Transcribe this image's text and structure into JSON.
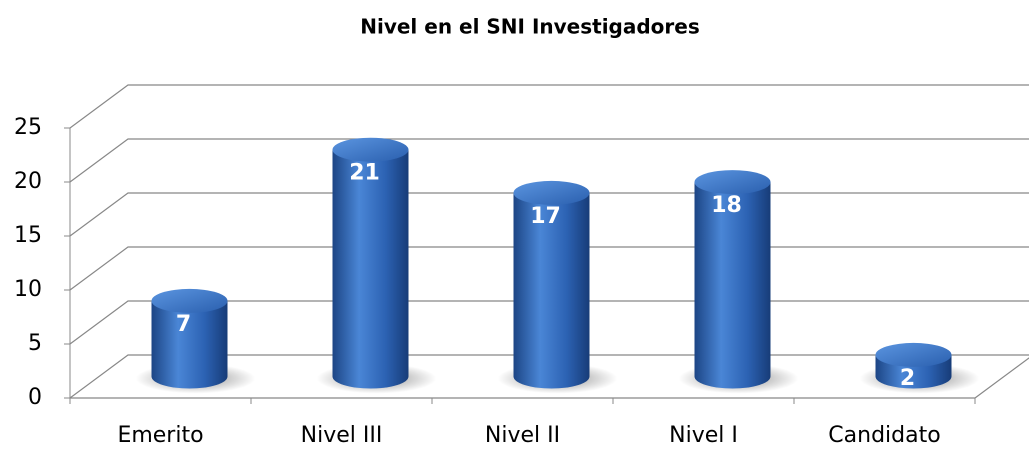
{
  "chart_data": {
    "type": "bar",
    "title": "Nivel en el SNI  Investigadores",
    "categories": [
      "Emerito",
      "Nivel III",
      "Nivel II",
      "Nivel I",
      "Candidato"
    ],
    "values": [
      7,
      21,
      17,
      18,
      2
    ],
    "color": "#2e64b4",
    "ylim": [
      0,
      25
    ],
    "yticks": [
      0,
      5,
      10,
      15,
      20,
      25
    ],
    "grid": true
  }
}
